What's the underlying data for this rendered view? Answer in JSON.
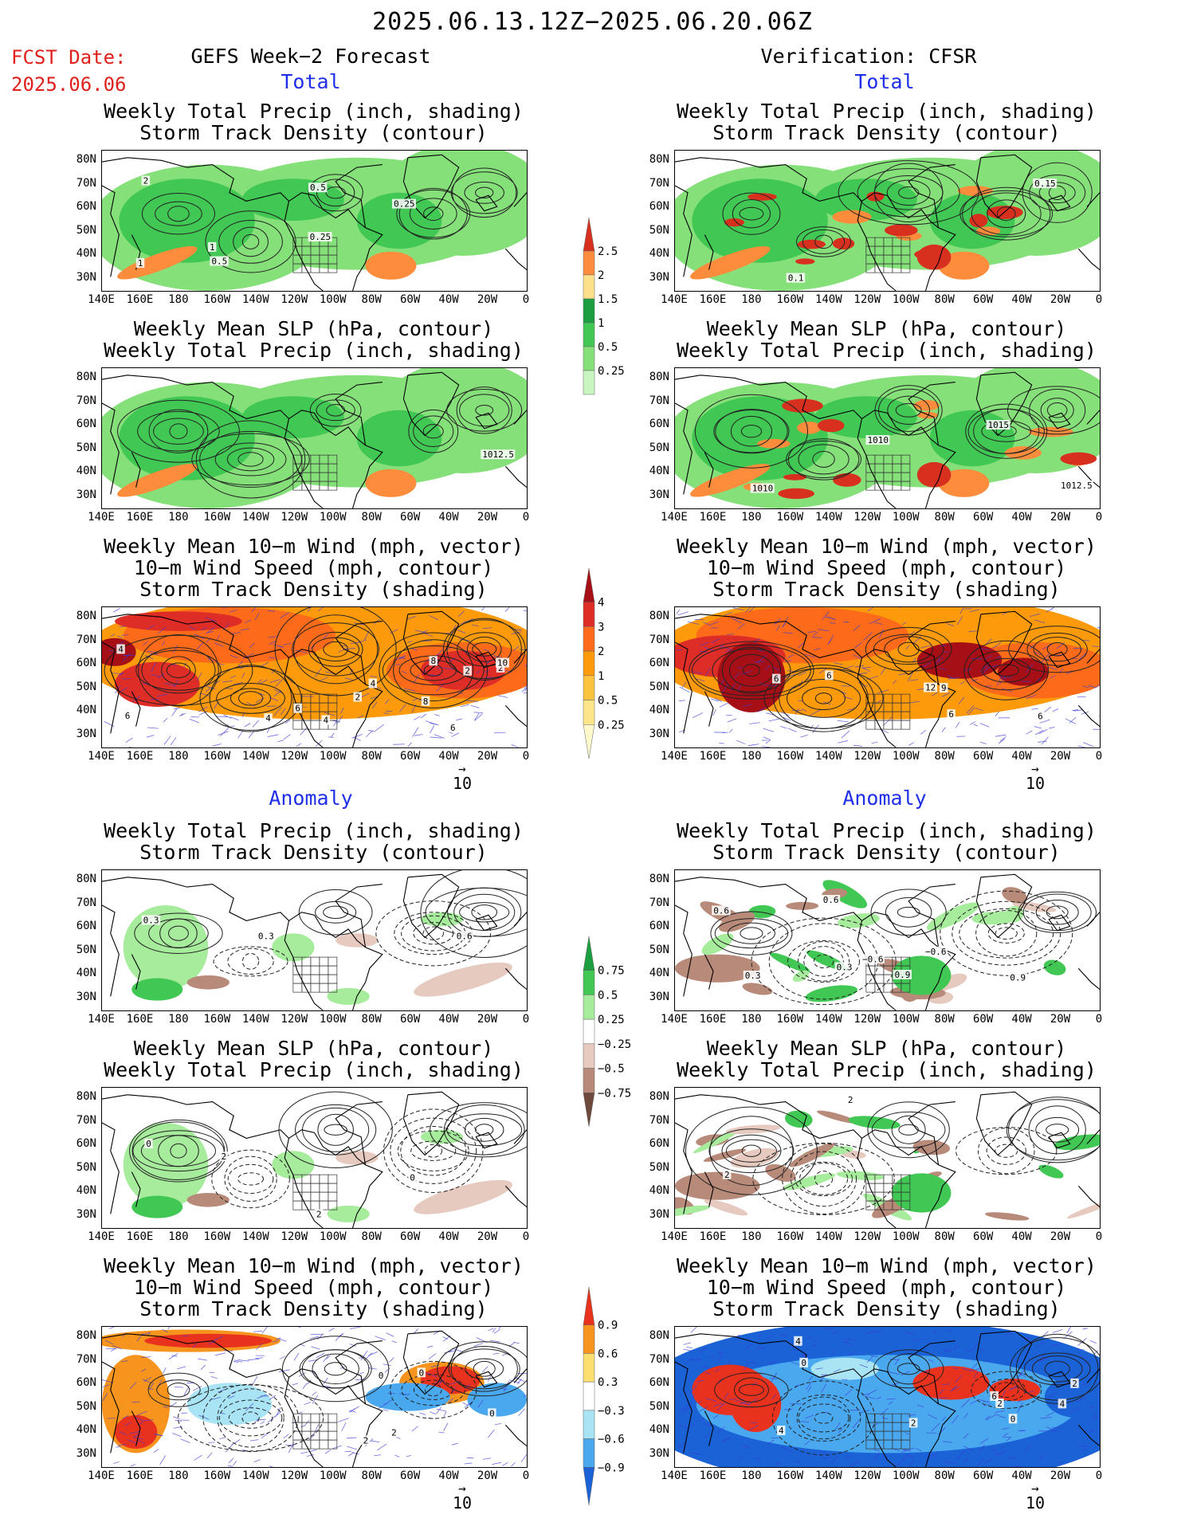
{
  "header": {
    "date_range": "2025.06.13.12Z−2025.06.20.06Z",
    "fcst_label": "FCST Date:",
    "fcst_date": "2025.06.06",
    "left_title": "GEFS Week−2 Forecast",
    "right_title": "Verification: CFSR"
  },
  "sections": {
    "total": "Total",
    "anomaly": "Anomaly"
  },
  "panel_titles": {
    "precip_storm": [
      "Weekly Total Precip (inch, shading)",
      "Storm Track Density (contour)"
    ],
    "slp_precip": [
      "Weekly Mean SLP (hPa, contour)",
      "Weekly Total Precip (inch, shading)"
    ],
    "wind_storm": [
      "Weekly Mean 10−m Wind (mph, vector)",
      "10−m Wind Speed (mph, contour)",
      "Storm Track Density (shading)"
    ]
  },
  "axes": {
    "lat_labels": [
      "80N",
      "70N",
      "60N",
      "50N",
      "40N",
      "30N"
    ],
    "lon_labels": [
      "140E",
      "160E",
      "180",
      "160W",
      "140W",
      "120W",
      "100W",
      "80W",
      "60W",
      "40W",
      "20W",
      "0"
    ]
  },
  "vector_ref": "10",
  "colorbars": {
    "precip_total": {
      "labels": [
        "2.5",
        "2",
        "1.5",
        "1",
        "0.5",
        "0.25"
      ],
      "colors": [
        "#d7301f",
        "#fd8d3c",
        "#fee08b",
        "#1a9e3f",
        "#41c753",
        "#86e07a",
        "#c8f5c0"
      ]
    },
    "storm_total": {
      "labels": [
        "4",
        "3",
        "2",
        "1",
        "0.5",
        "0.25"
      ],
      "colors": [
        "#a50f15",
        "#de2d26",
        "#fc6a1a",
        "#fd9a0c",
        "#fcc33e",
        "#fde68a",
        "#fff8cc"
      ]
    },
    "precip_anom": {
      "labels": [
        "0.75",
        "0.5",
        "0.25",
        "−0.25",
        "−0.5",
        "−0.75"
      ],
      "colors": [
        "#1a9e3f",
        "#41c753",
        "#a7ec9c",
        "#ffffff",
        "#e6c9bf",
        "#b88a7a",
        "#6e4a3c"
      ]
    },
    "storm_anom": {
      "labels": [
        "0.9",
        "0.6",
        "0.3",
        "−0.3",
        "−0.6",
        "−0.9"
      ],
      "colors": [
        "#e8321e",
        "#f7941d",
        "#fddf6f",
        "#ffffff",
        "#a9e4f5",
        "#4aa8ee",
        "#1a62d6"
      ]
    }
  },
  "contour_labels": {
    "f_precip_total": [
      "1",
      "0.5",
      "0.25",
      "0.5",
      "1",
      "2",
      "0.25"
    ],
    "v_precip_total": [
      "0.1",
      "0.15"
    ],
    "f_slp_total": [
      "1012.5"
    ],
    "v_slp_total": [
      "1012.5",
      "1015",
      "1010",
      "1010"
    ],
    "f_wind_total": [
      "4",
      "4",
      "2",
      "4",
      "2",
      "6",
      "6",
      "4",
      "2",
      "8",
      "10",
      "6",
      "8"
    ],
    "v_wind_total": [
      "6",
      "9",
      "12",
      "6",
      "6",
      "6"
    ],
    "f_precip_anom": [
      "0.3",
      "0.6",
      "0.3"
    ],
    "v_precip_anom": [
      "0.3",
      "0.9",
      "0.6",
      "0.6",
      "0.3",
      "0.9",
      "−0.6",
      "−0.6"
    ],
    "f_slp_anom": [
      "0",
      "0",
      "2",
      "2"
    ],
    "v_slp_anom": [
      "2",
      "2"
    ],
    "f_wind_anom": [
      "0",
      "2",
      "0",
      "2",
      "0"
    ],
    "v_wind_anom": [
      "2",
      "0",
      "4",
      "4",
      "2",
      "6",
      "2",
      "0",
      "4"
    ]
  }
}
